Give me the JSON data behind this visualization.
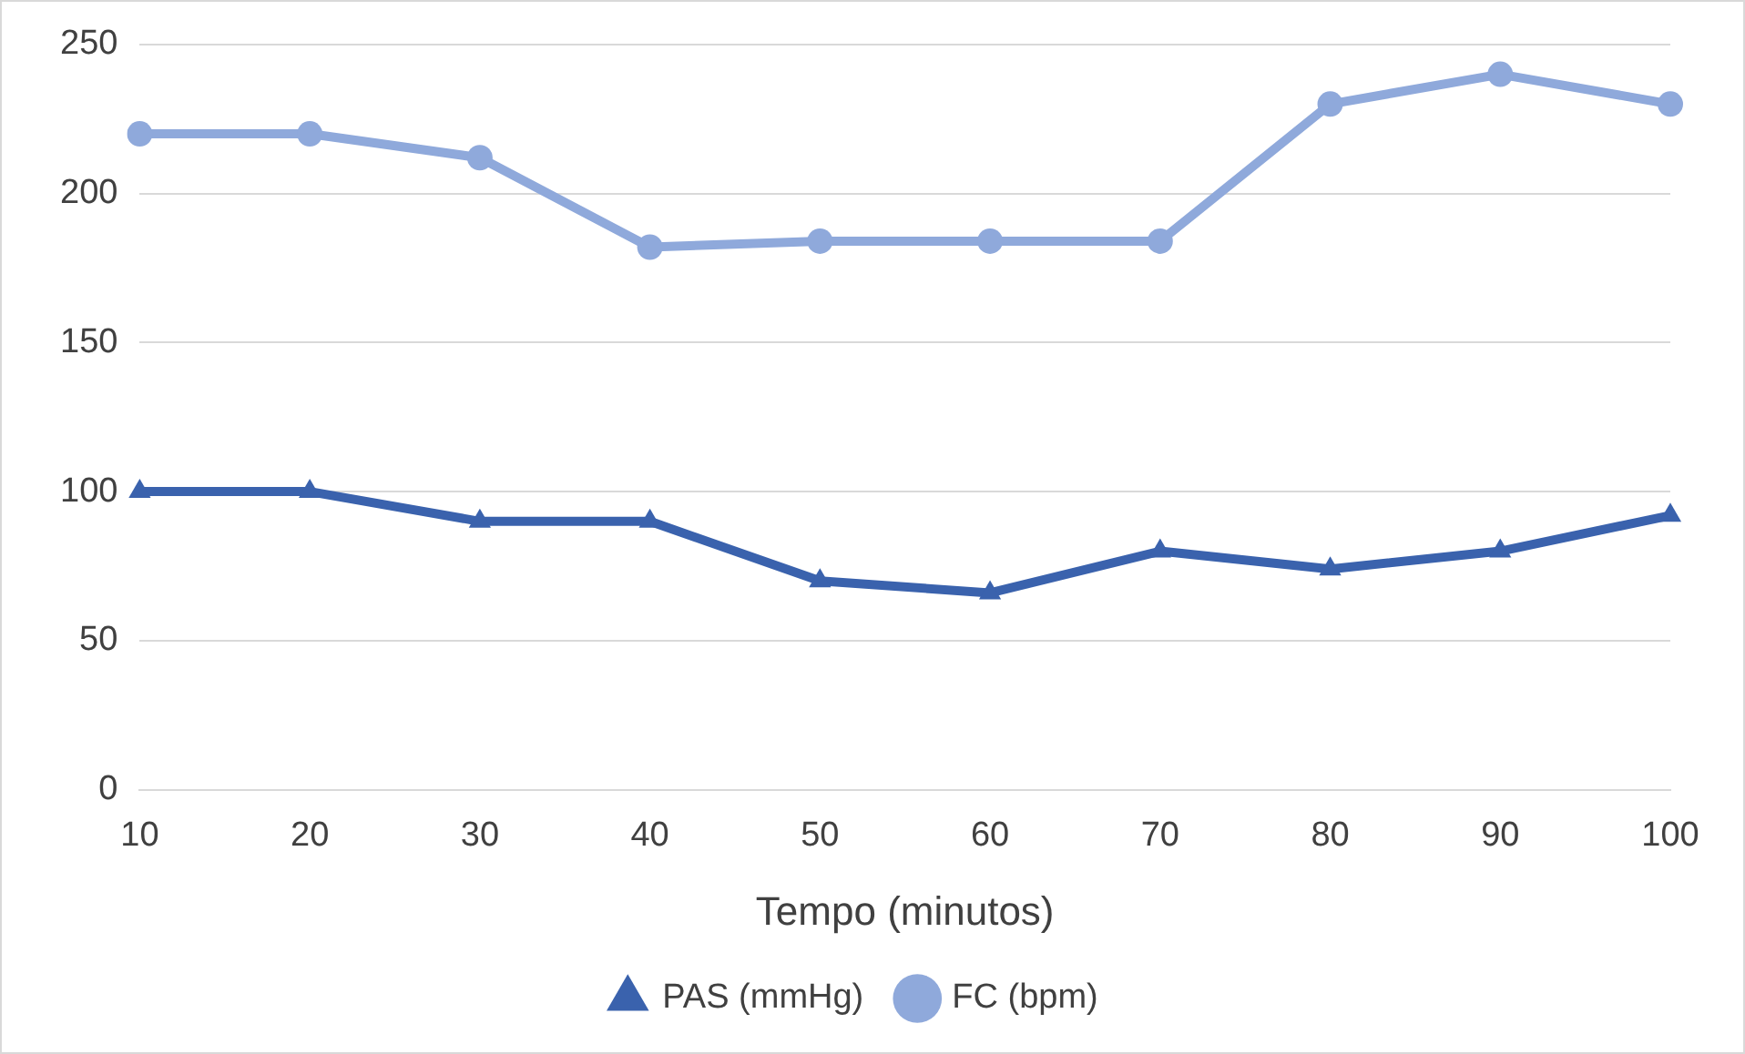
{
  "chart_data": {
    "type": "line",
    "xlabel": "Tempo (minutos)",
    "categories": [
      "10",
      "20",
      "30",
      "40",
      "50",
      "60",
      "70",
      "80",
      "90",
      "100"
    ],
    "series": [
      {
        "name": "PAS (mmHg)",
        "color": "#3a62ad",
        "marker": "triangle",
        "values": [
          100,
          100,
          90,
          90,
          70,
          66,
          80,
          74,
          80,
          92
        ]
      },
      {
        "name": "FC (bpm)",
        "color": "#8fa9db",
        "marker": "circle",
        "values": [
          220,
          220,
          212,
          182,
          184,
          184,
          184,
          230,
          240,
          230
        ]
      }
    ],
    "ylim": [
      0,
      250
    ],
    "yticks": [
      0,
      50,
      100,
      150,
      200,
      250
    ],
    "grid": "y",
    "legend": "bottom",
    "line_style": "solid"
  }
}
